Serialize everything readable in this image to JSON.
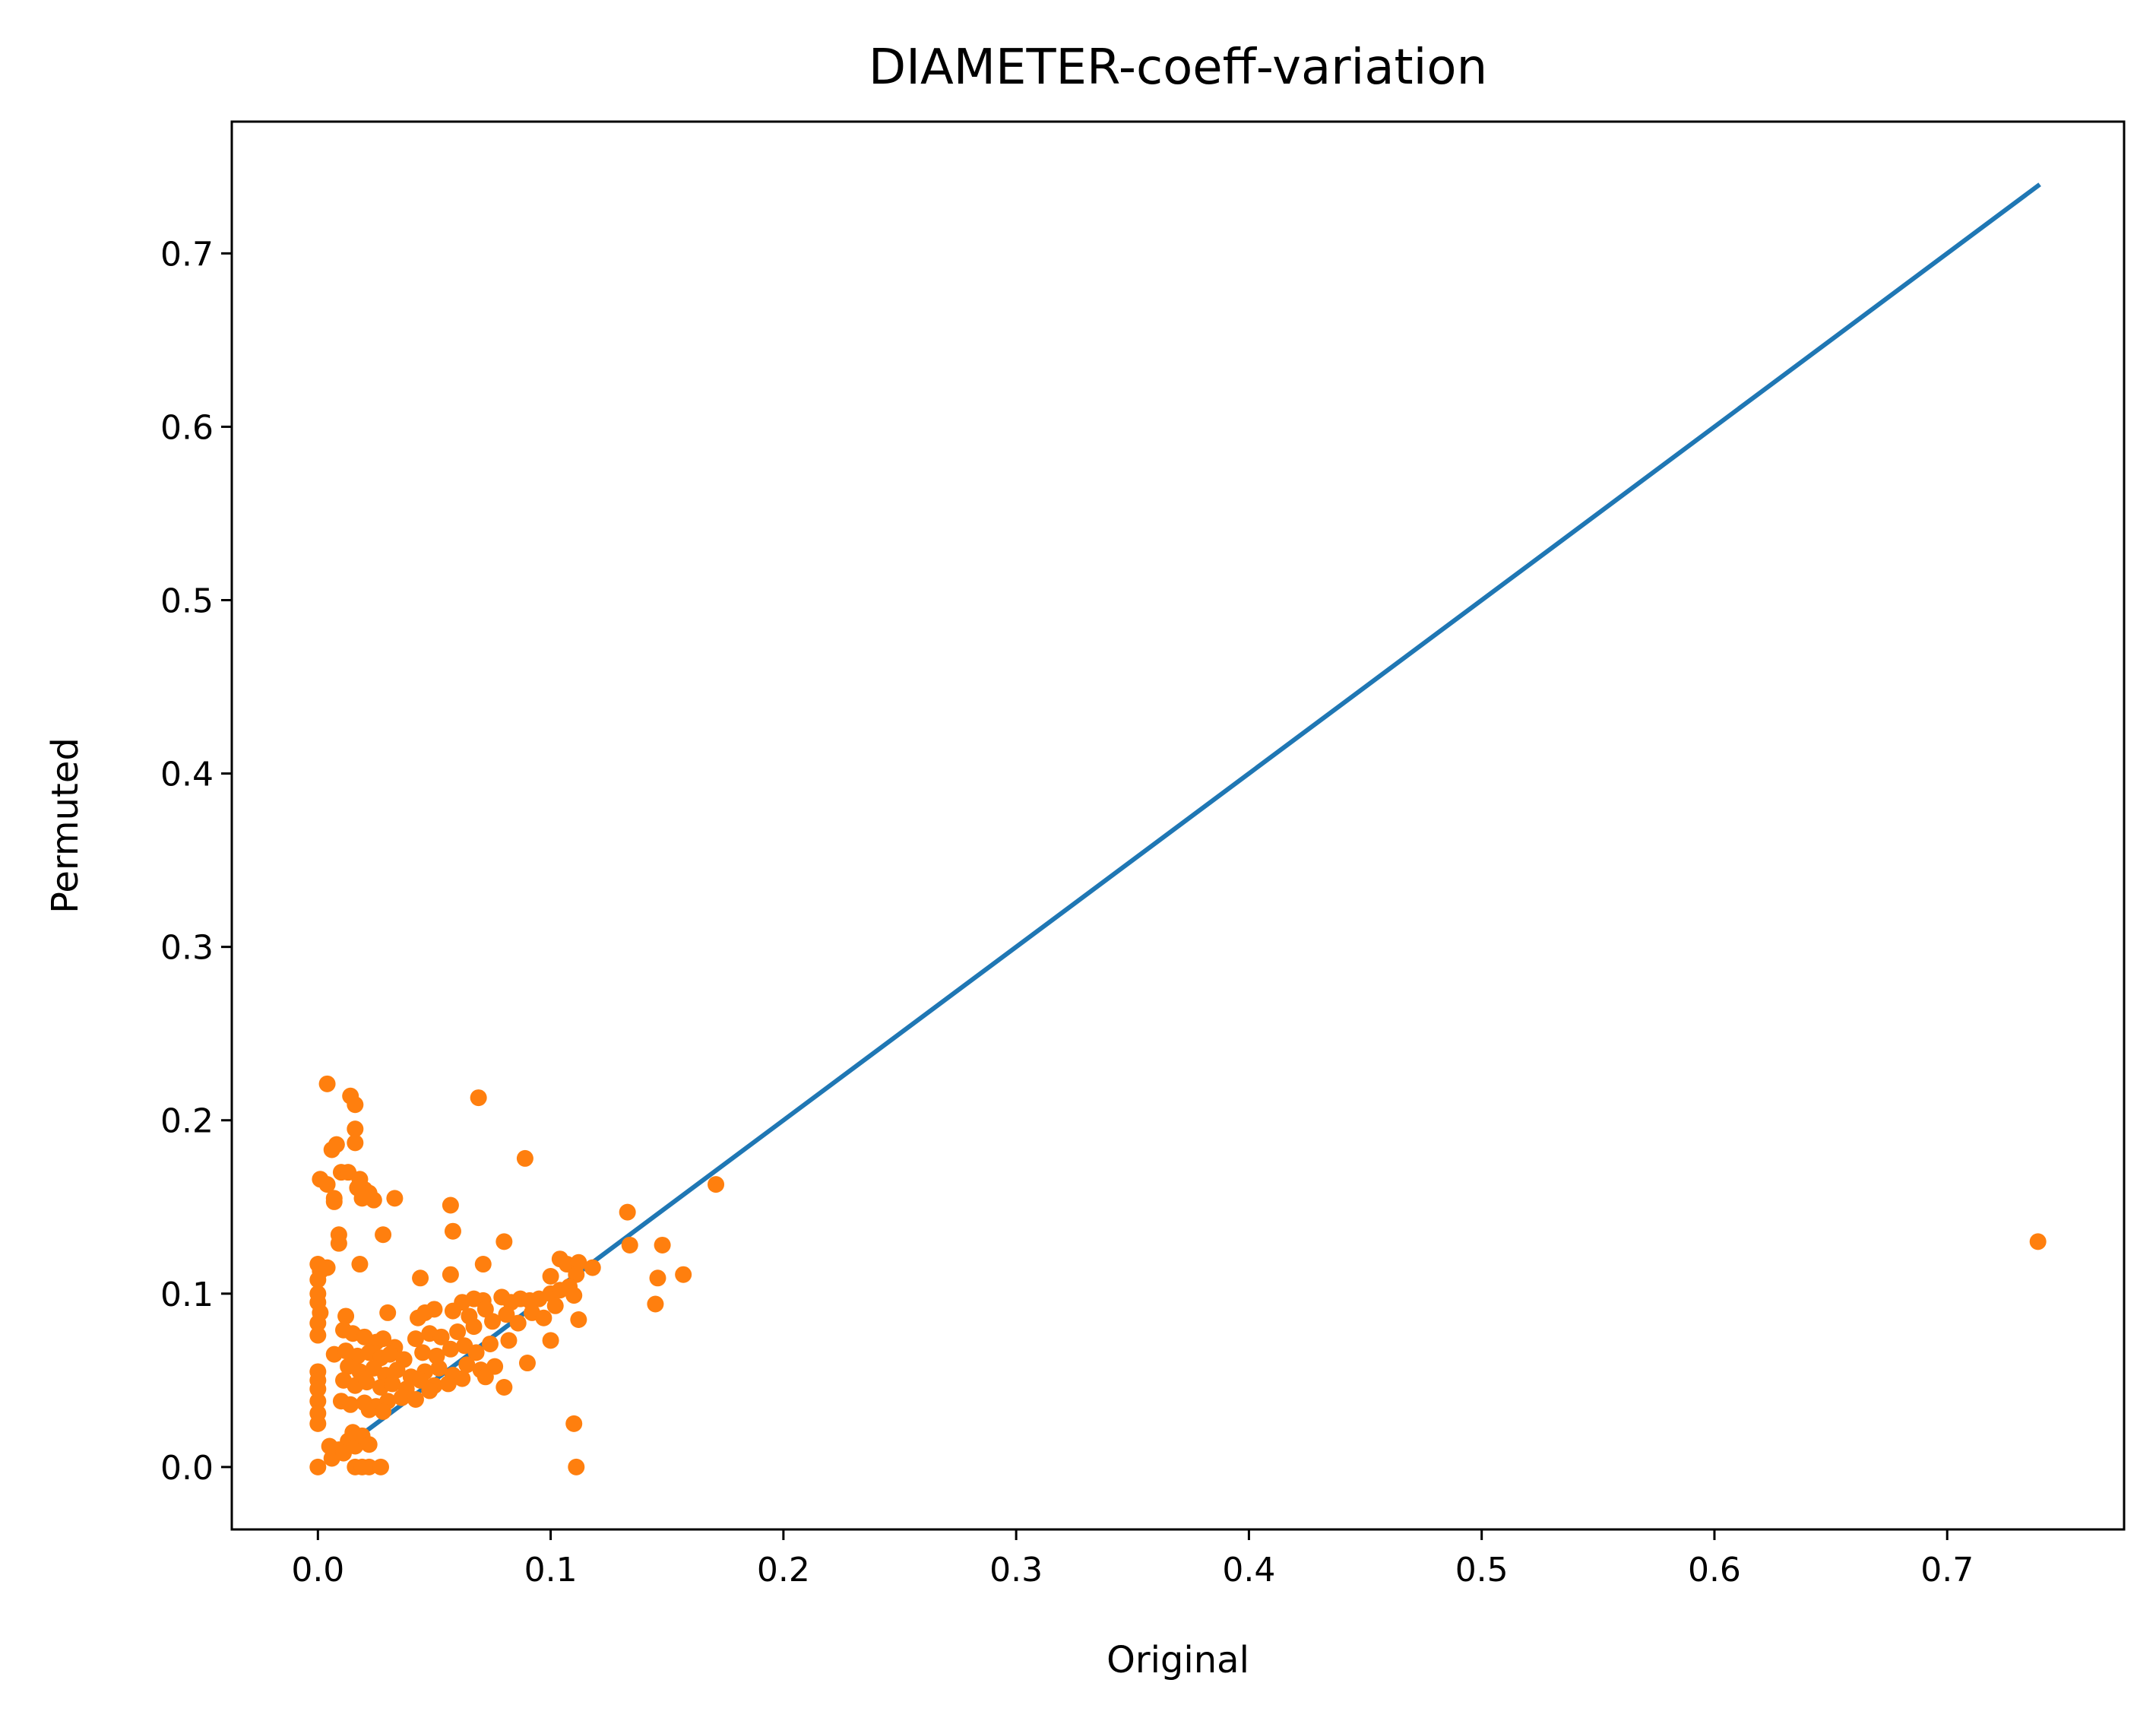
{
  "chart_data": {
    "type": "scatter",
    "title": "DIAMETER-coeff-variation",
    "xlabel": "Original",
    "ylabel": "Permuted",
    "xlim": [
      -0.037,
      0.776
    ],
    "ylim": [
      -0.036,
      0.776
    ],
    "xticks": [
      0.0,
      0.1,
      0.2,
      0.3,
      0.4,
      0.5,
      0.6,
      0.7
    ],
    "xtick_labels": [
      "0.0",
      "0.1",
      "0.2",
      "0.3",
      "0.4",
      "0.5",
      "0.6",
      "0.7"
    ],
    "yticks": [
      0.0,
      0.1,
      0.2,
      0.3,
      0.4,
      0.5,
      0.6,
      0.7
    ],
    "ytick_labels": [
      "0.0",
      "0.1",
      "0.2",
      "0.3",
      "0.4",
      "0.5",
      "0.6",
      "0.7"
    ],
    "grid": false,
    "colors": {
      "line": "#1f77b4",
      "points": "#ff7f0e",
      "axes": "#000000",
      "background": "#ffffff"
    },
    "line": {
      "x": [
        0.018,
        0.739
      ],
      "y": [
        0.018,
        0.739
      ]
    },
    "points": [
      [
        0.739,
        0.13
      ],
      [
        0.171,
        0.163
      ],
      [
        0.133,
        0.147
      ],
      [
        0.134,
        0.128
      ],
      [
        0.148,
        0.128
      ],
      [
        0.157,
        0.111
      ],
      [
        0.146,
        0.109
      ],
      [
        0.145,
        0.094
      ],
      [
        0.11,
        0.025
      ],
      [
        0.111,
        0.0
      ],
      [
        0.004,
        0.221
      ],
      [
        0.014,
        0.214
      ],
      [
        0.016,
        0.209
      ],
      [
        0.016,
        0.195
      ],
      [
        0.016,
        0.187
      ],
      [
        0.069,
        0.213
      ],
      [
        0.089,
        0.178
      ],
      [
        0.006,
        0.183
      ],
      [
        0.008,
        0.186
      ],
      [
        0.01,
        0.17
      ],
      [
        0.013,
        0.17
      ],
      [
        0.018,
        0.166
      ],
      [
        0.001,
        0.166
      ],
      [
        0.004,
        0.163
      ],
      [
        0.017,
        0.161
      ],
      [
        0.02,
        0.16
      ],
      [
        0.022,
        0.158
      ],
      [
        0.024,
        0.154
      ],
      [
        0.033,
        0.155
      ],
      [
        0.019,
        0.155
      ],
      [
        0.007,
        0.155
      ],
      [
        0.007,
        0.153
      ],
      [
        0.057,
        0.151
      ],
      [
        0.009,
        0.134
      ],
      [
        0.009,
        0.129
      ],
      [
        0.028,
        0.134
      ],
      [
        0.058,
        0.136
      ],
      [
        0.08,
        0.13
      ],
      [
        0.0,
        0.117
      ],
      [
        0.001,
        0.113
      ],
      [
        0.004,
        0.115
      ],
      [
        0.018,
        0.117
      ],
      [
        0.071,
        0.117
      ],
      [
        0.104,
        0.12
      ],
      [
        0.107,
        0.117
      ],
      [
        0.112,
        0.118
      ],
      [
        0.118,
        0.115
      ],
      [
        0.0,
        0.108
      ],
      [
        0.0,
        0.1
      ],
      [
        0.0,
        0.095
      ],
      [
        0.001,
        0.089
      ],
      [
        0.0,
        0.083
      ],
      [
        0.0,
        0.076
      ],
      [
        0.044,
        0.109
      ],
      [
        0.057,
        0.111
      ],
      [
        0.1,
        0.11
      ],
      [
        0.111,
        0.111
      ],
      [
        0.012,
        0.087
      ],
      [
        0.03,
        0.089
      ],
      [
        0.046,
        0.089
      ],
      [
        0.05,
        0.091
      ],
      [
        0.062,
        0.095
      ],
      [
        0.067,
        0.097
      ],
      [
        0.071,
        0.096
      ],
      [
        0.079,
        0.098
      ],
      [
        0.083,
        0.095
      ],
      [
        0.087,
        0.097
      ],
      [
        0.091,
        0.096
      ],
      [
        0.095,
        0.097
      ],
      [
        0.1,
        0.1
      ],
      [
        0.104,
        0.102
      ],
      [
        0.108,
        0.104
      ],
      [
        0.11,
        0.099
      ],
      [
        0.043,
        0.086
      ],
      [
        0.058,
        0.09
      ],
      [
        0.065,
        0.087
      ],
      [
        0.072,
        0.091
      ],
      [
        0.081,
        0.088
      ],
      [
        0.092,
        0.089
      ],
      [
        0.102,
        0.093
      ],
      [
        0.011,
        0.079
      ],
      [
        0.015,
        0.077
      ],
      [
        0.02,
        0.075
      ],
      [
        0.025,
        0.072
      ],
      [
        0.028,
        0.074
      ],
      [
        0.033,
        0.069
      ],
      [
        0.042,
        0.074
      ],
      [
        0.048,
        0.077
      ],
      [
        0.053,
        0.075
      ],
      [
        0.06,
        0.078
      ],
      [
        0.067,
        0.081
      ],
      [
        0.075,
        0.084
      ],
      [
        0.086,
        0.083
      ],
      [
        0.097,
        0.086
      ],
      [
        0.1,
        0.073
      ],
      [
        0.112,
        0.085
      ],
      [
        0.007,
        0.065
      ],
      [
        0.012,
        0.067
      ],
      [
        0.017,
        0.064
      ],
      [
        0.022,
        0.066
      ],
      [
        0.027,
        0.063
      ],
      [
        0.031,
        0.065
      ],
      [
        0.037,
        0.062
      ],
      [
        0.045,
        0.066
      ],
      [
        0.051,
        0.064
      ],
      [
        0.057,
        0.068
      ],
      [
        0.063,
        0.07
      ],
      [
        0.068,
        0.066
      ],
      [
        0.074,
        0.071
      ],
      [
        0.082,
        0.073
      ],
      [
        0.09,
        0.06
      ],
      [
        0.0,
        0.055
      ],
      [
        0.0,
        0.05
      ],
      [
        0.0,
        0.045
      ],
      [
        0.0,
        0.038
      ],
      [
        0.0,
        0.031
      ],
      [
        0.0,
        0.025
      ],
      [
        0.013,
        0.058
      ],
      [
        0.018,
        0.055
      ],
      [
        0.024,
        0.057
      ],
      [
        0.029,
        0.053
      ],
      [
        0.034,
        0.056
      ],
      [
        0.04,
        0.052
      ],
      [
        0.046,
        0.055
      ],
      [
        0.052,
        0.057
      ],
      [
        0.058,
        0.053
      ],
      [
        0.064,
        0.059
      ],
      [
        0.07,
        0.056
      ],
      [
        0.076,
        0.058
      ],
      [
        0.011,
        0.05
      ],
      [
        0.016,
        0.047
      ],
      [
        0.021,
        0.049
      ],
      [
        0.027,
        0.046
      ],
      [
        0.032,
        0.048
      ],
      [
        0.038,
        0.045
      ],
      [
        0.044,
        0.05
      ],
      [
        0.05,
        0.047
      ],
      [
        0.056,
        0.048
      ],
      [
        0.062,
        0.051
      ],
      [
        0.072,
        0.052
      ],
      [
        0.08,
        0.046
      ],
      [
        0.01,
        0.038
      ],
      [
        0.014,
        0.036
      ],
      [
        0.02,
        0.037
      ],
      [
        0.025,
        0.035
      ],
      [
        0.03,
        0.038
      ],
      [
        0.036,
        0.04
      ],
      [
        0.042,
        0.039
      ],
      [
        0.048,
        0.044
      ],
      [
        0.022,
        0.033
      ],
      [
        0.028,
        0.032
      ],
      [
        0.005,
        0.012
      ],
      [
        0.009,
        0.01
      ],
      [
        0.013,
        0.015
      ],
      [
        0.016,
        0.012
      ],
      [
        0.019,
        0.018
      ],
      [
        0.022,
        0.013
      ],
      [
        0.006,
        0.005
      ],
      [
        0.011,
        0.008
      ],
      [
        0.015,
        0.02
      ],
      [
        0.0,
        0.0
      ],
      [
        0.016,
        0.0
      ],
      [
        0.019,
        0.0
      ],
      [
        0.022,
        0.0
      ],
      [
        0.027,
        0.0
      ]
    ]
  }
}
